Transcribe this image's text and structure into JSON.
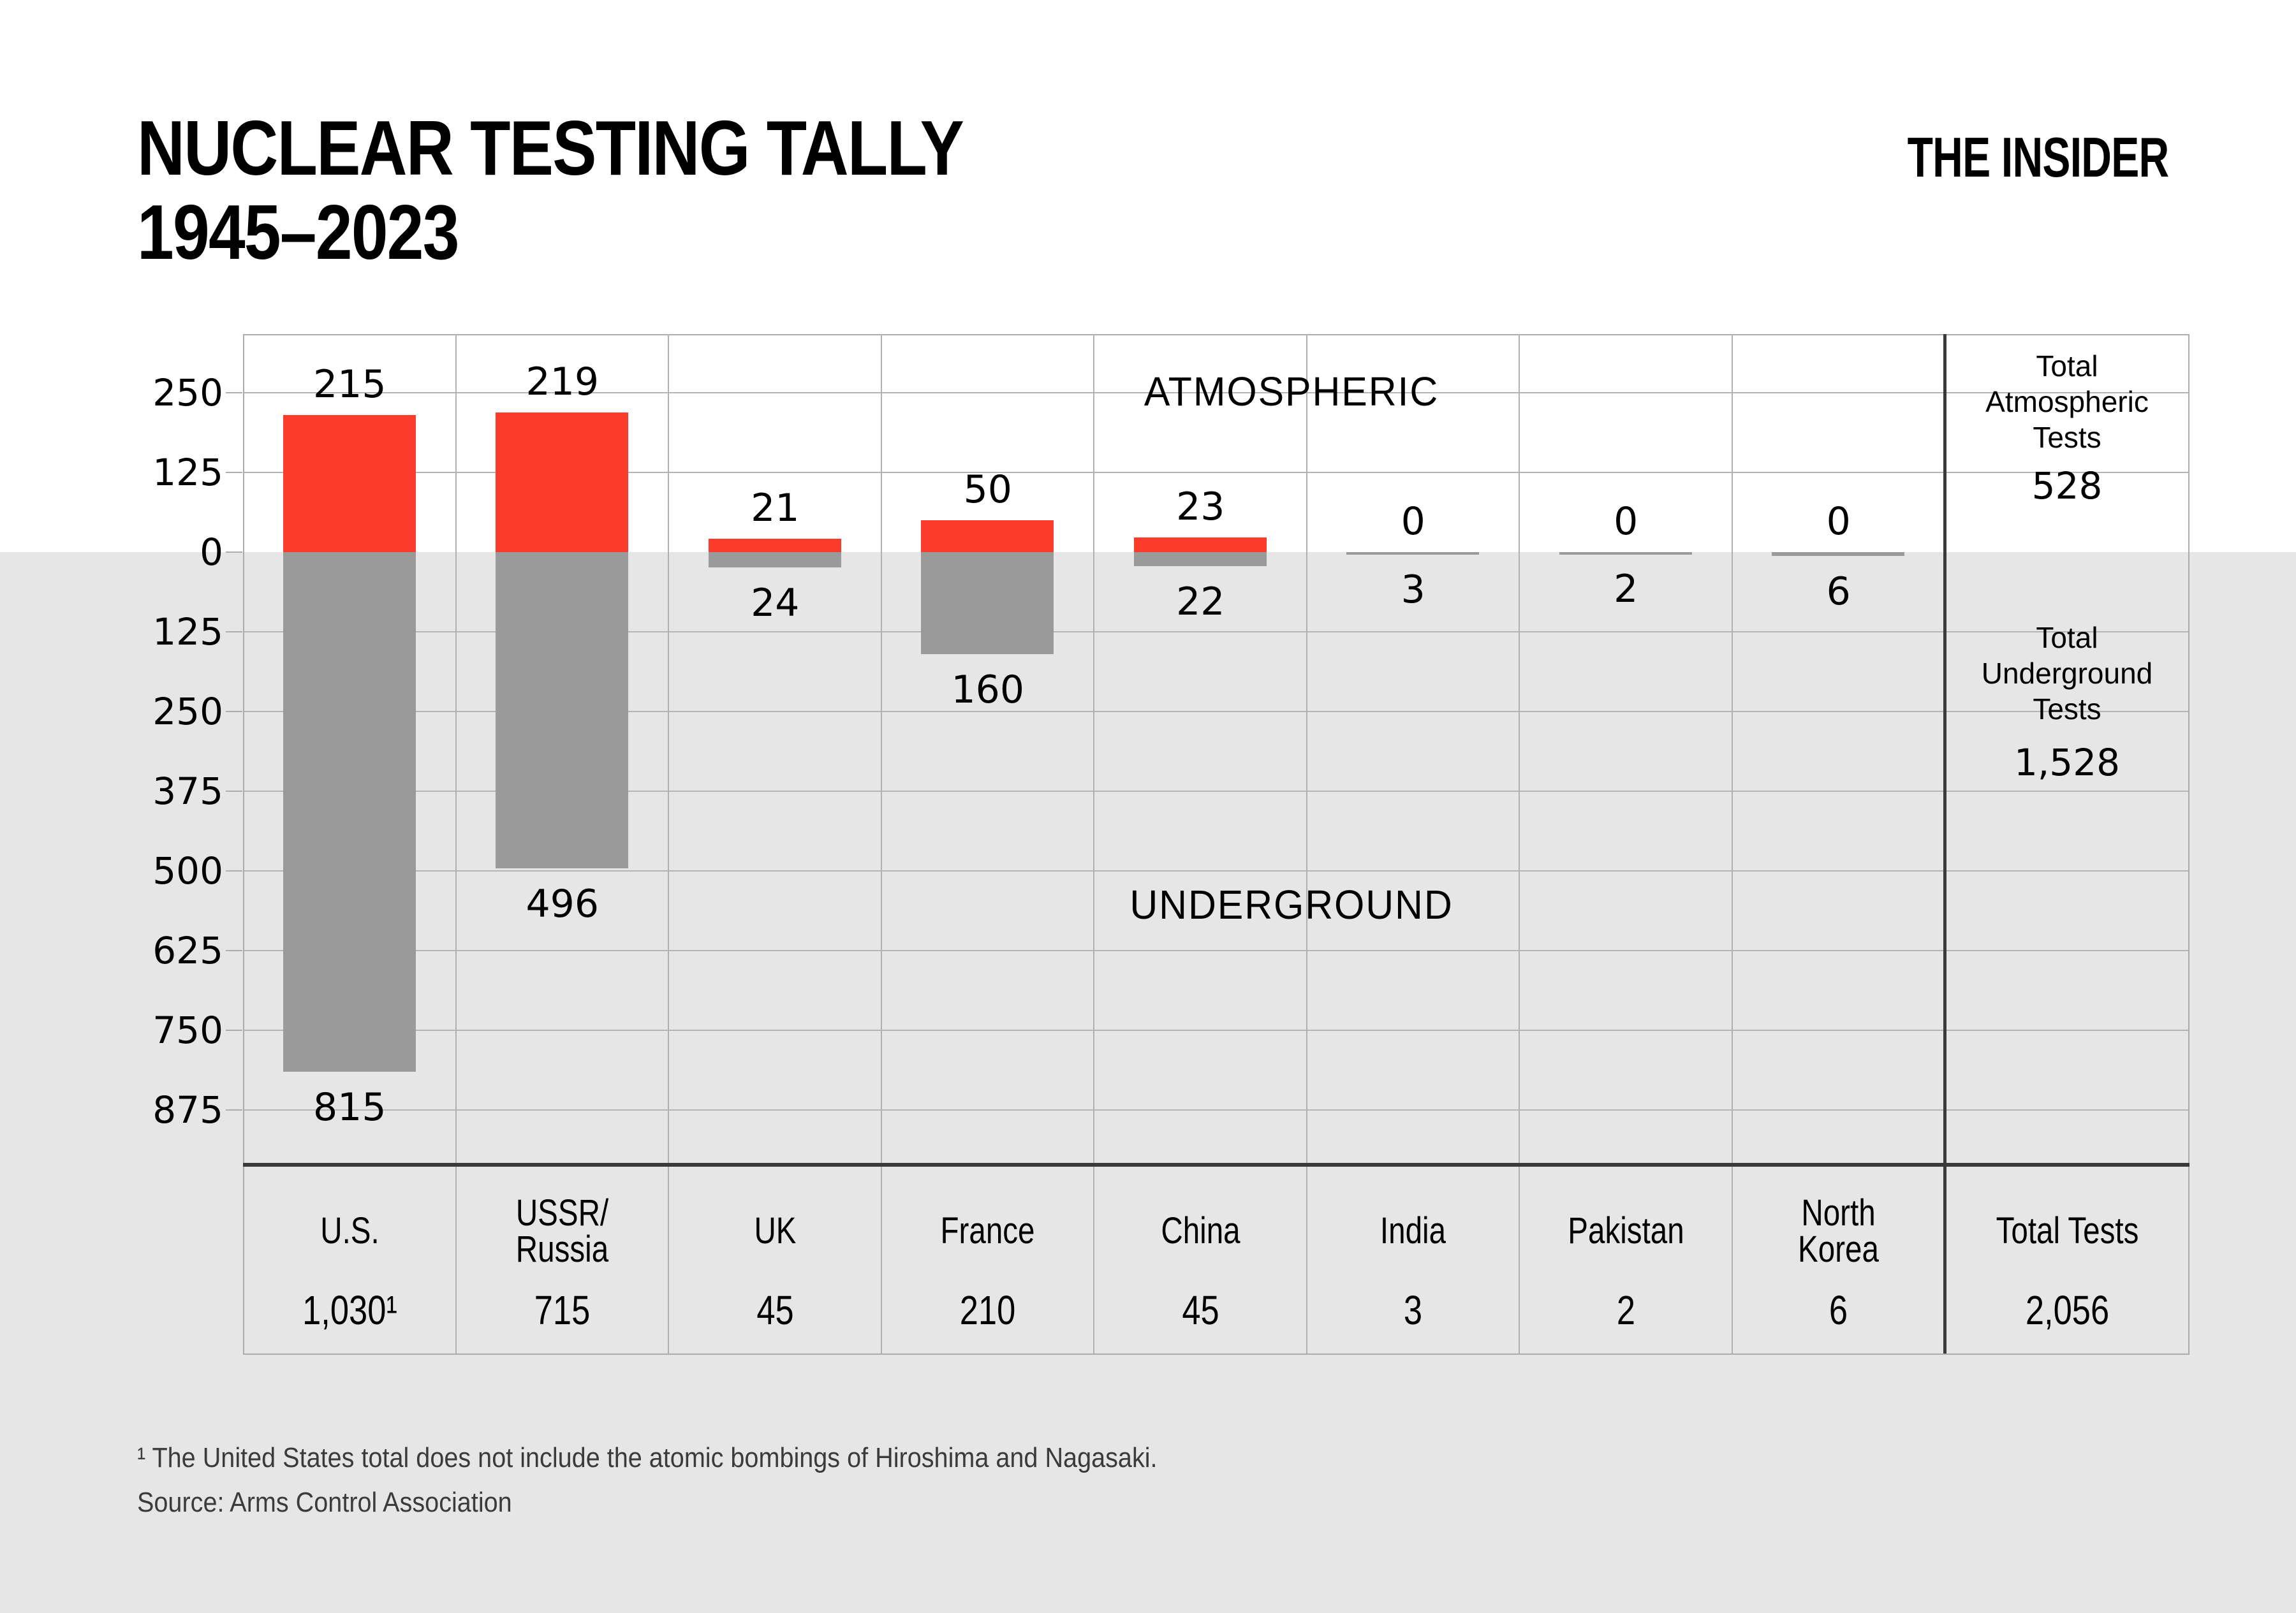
{
  "header": {
    "title_line1": "NUCLEAR TESTING TALLY",
    "title_line2": "1945–2023",
    "logo": "THE INSIDER"
  },
  "captions": {
    "atmospheric": "ATMOSPHERIC",
    "underground": "UNDERGROUND"
  },
  "axis": {
    "ticks": [
      "250",
      "125",
      "0",
      "125",
      "250",
      "375",
      "500",
      "625",
      "750",
      "875"
    ]
  },
  "totals_panel": {
    "atmospheric_label": "Total Atmospheric Tests",
    "atmospheric_value": "528",
    "underground_label": "Total Underground Tests",
    "underground_value": "1,528",
    "total_label": "Total Tests",
    "total_value": "2,056"
  },
  "footnotes": {
    "note": "¹ The United States total does not include the atomic bombings of Hiroshima and Nagasaki.",
    "source": "Source: Arms Control Association"
  },
  "chart_data": {
    "type": "bar",
    "title": "Nuclear Testing Tally 1945–2023",
    "categories": [
      "U.S.",
      "USSR/|Russia",
      "UK",
      "France",
      "China",
      "India",
      "Pakistan",
      "North|Korea"
    ],
    "series": [
      {
        "name": "Atmospheric",
        "values": [
          215,
          219,
          21,
          50,
          23,
          0,
          0,
          0
        ]
      },
      {
        "name": "Underground",
        "values": [
          815,
          496,
          24,
          160,
          22,
          3,
          2,
          6
        ]
      }
    ],
    "country_totals": [
      "1,030¹",
      "715",
      "45",
      "210",
      "45",
      "3",
      "2",
      "6"
    ],
    "total_atmospheric": 528,
    "total_underground": 1528,
    "total_tests": 2056,
    "ylim": [
      -983,
      341
    ],
    "gridline_spacing": 125,
    "legend_position": "in-plot-captions",
    "grid": true,
    "colors": {
      "atmospheric_bar": "#fb3b2b",
      "underground_bar": "#9a9a9a",
      "lower_band_bg": "#e6e6e6",
      "gridline": "#b4b4b4",
      "dark_rule": "#3a3a3a",
      "footnote_text": "#3b3b3b"
    }
  }
}
